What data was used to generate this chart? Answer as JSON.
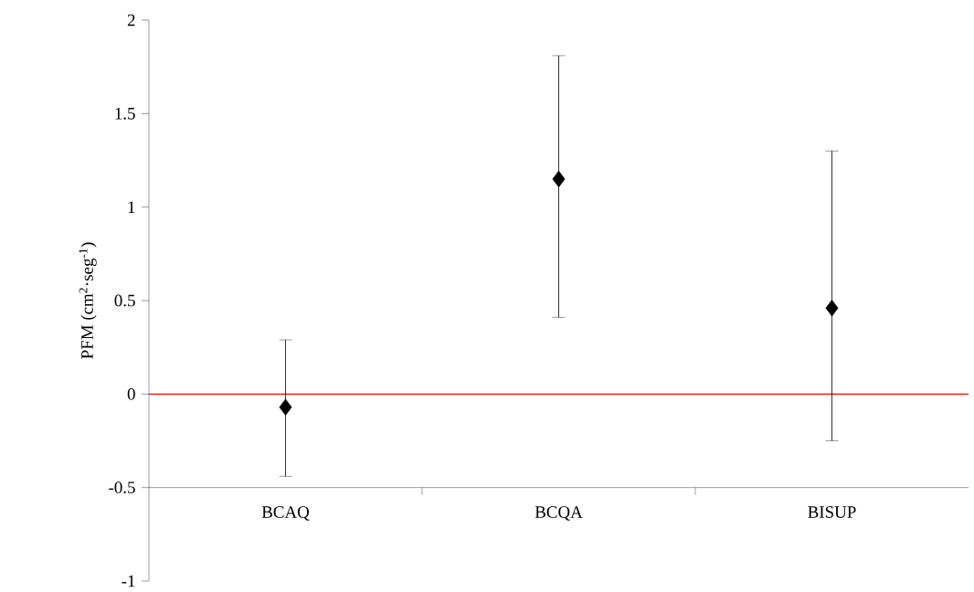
{
  "chart_data": {
    "type": "scatter",
    "ylabel": "PFM (cm$^{2}$·seg$^{-1}$)",
    "categories": [
      "BCAQ",
      "BCQA",
      "BISUP"
    ],
    "values": [
      -0.07,
      1.15,
      0.46
    ],
    "errors": [
      [
        -0.44,
        0.29
      ],
      [
        0.41,
        1.81
      ],
      [
        -0.25,
        1.3
      ]
    ],
    "color": "#000000",
    "marker": "diamond",
    "ylim": [
      -1,
      2
    ],
    "yticks": [
      -1,
      -0.5,
      0,
      0.5,
      1,
      1.5,
      2
    ],
    "ref_lines": [
      {
        "axis": "y",
        "value": 0,
        "color": "#ff0000"
      }
    ]
  }
}
